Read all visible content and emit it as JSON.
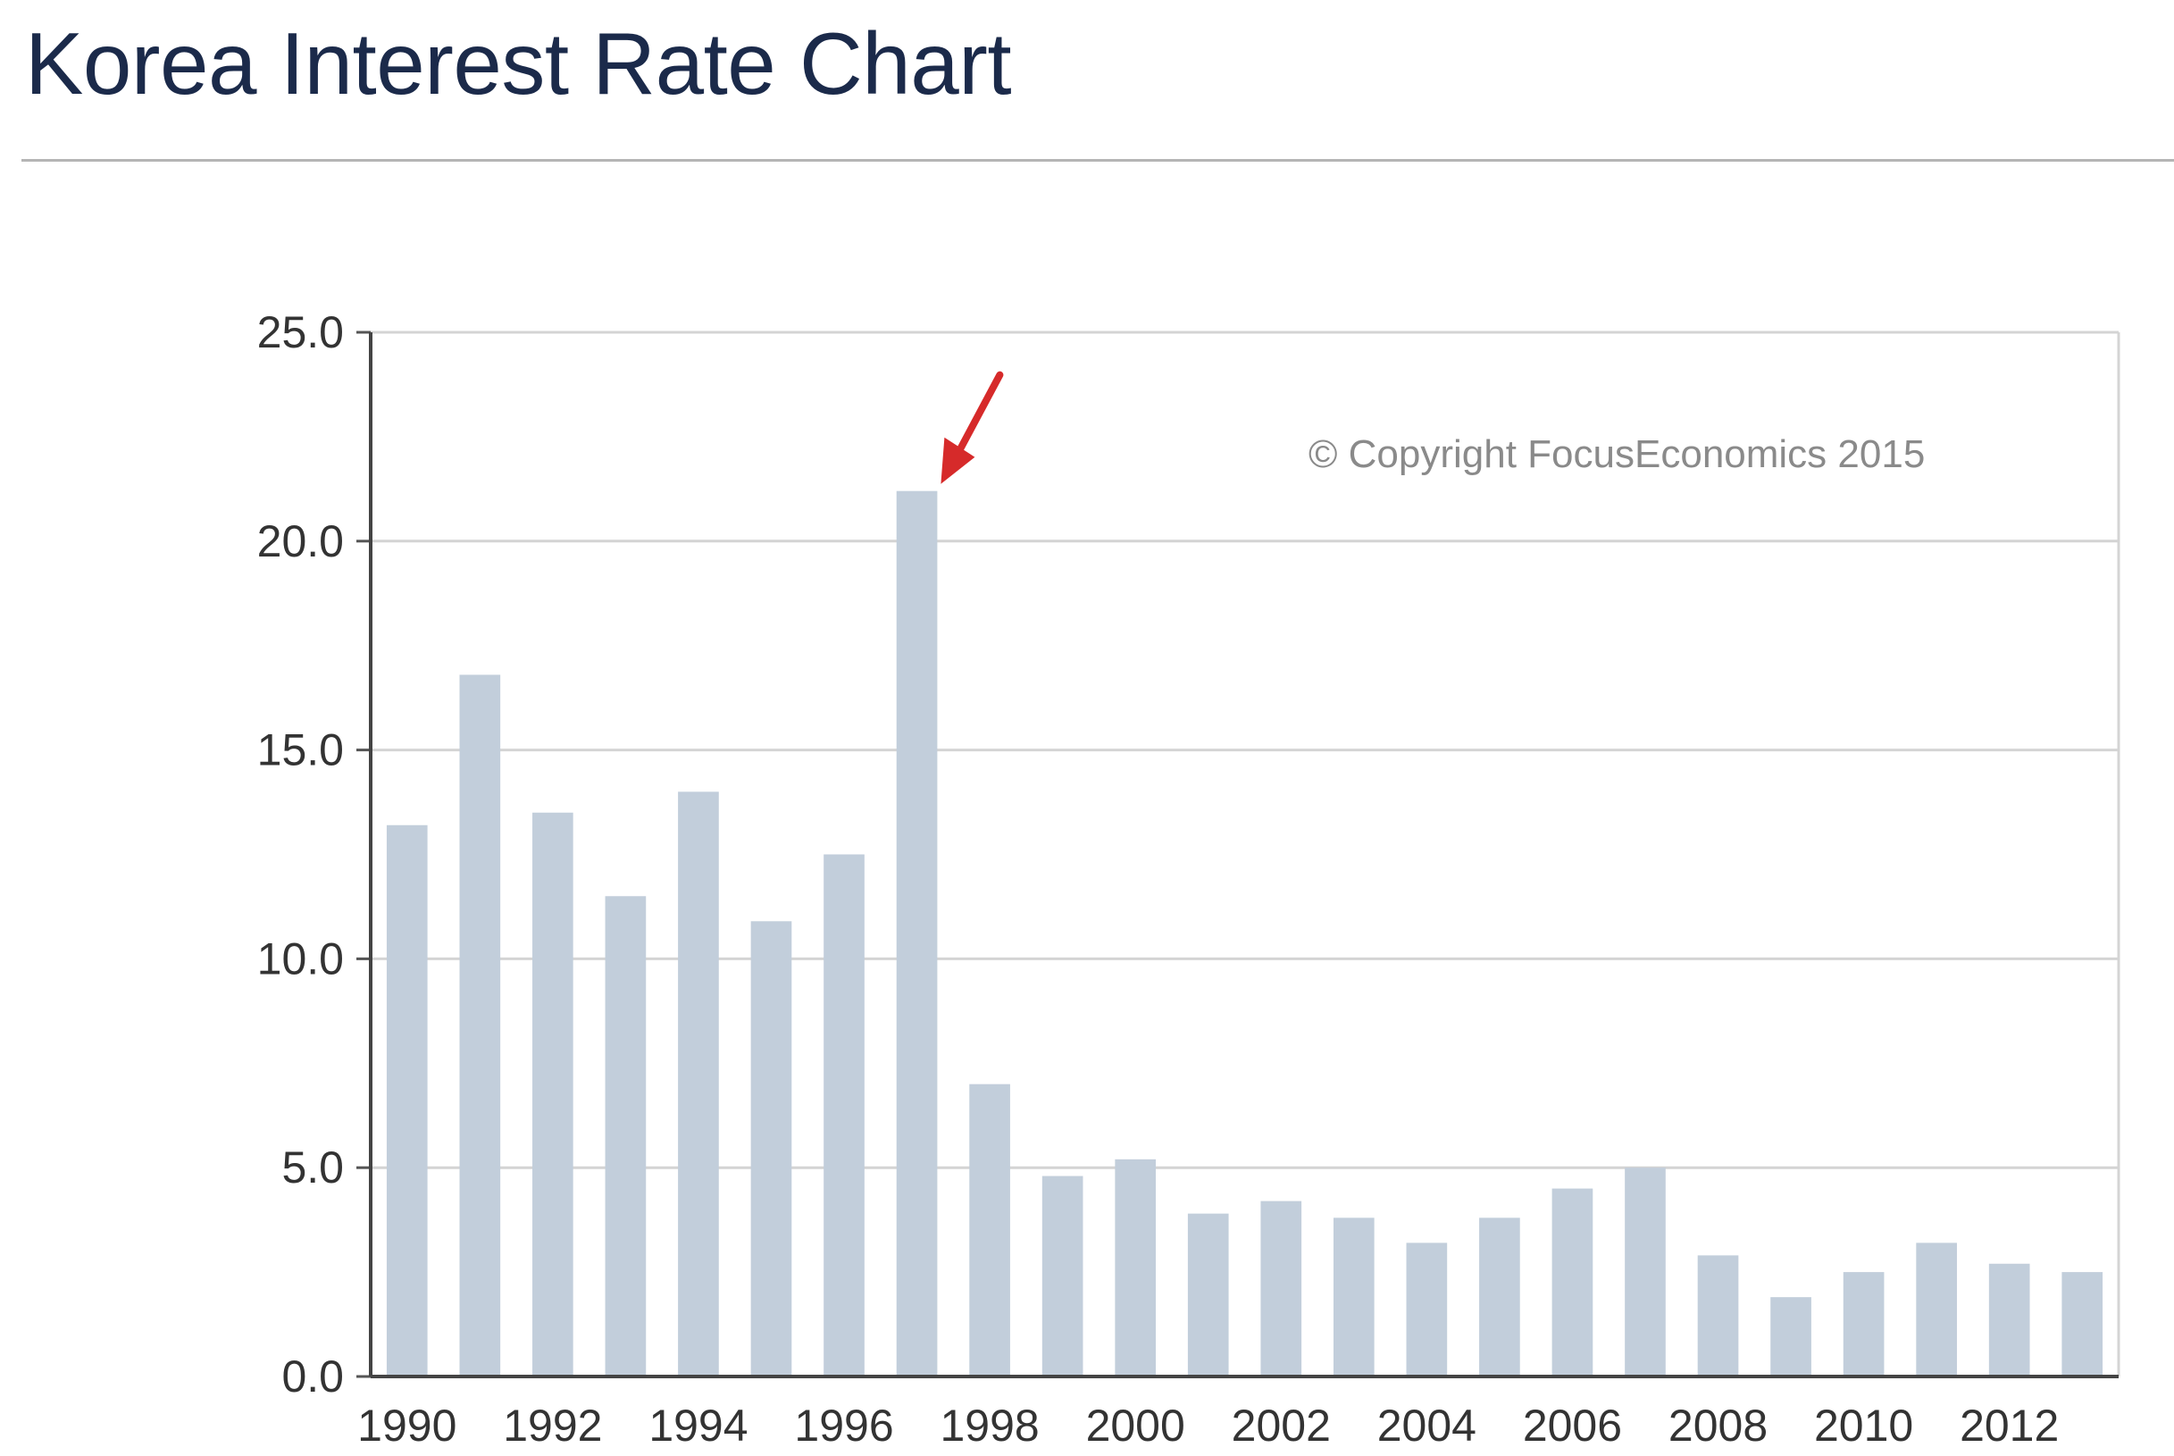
{
  "page": {
    "title": "Korea Interest Rate Chart"
  },
  "chart_data": {
    "type": "bar",
    "title": "Korea Interest Rate Chart",
    "xlabel": "",
    "ylabel": "",
    "ylim": [
      0,
      25
    ],
    "yticks": [
      "0.0",
      "5.0",
      "10.0",
      "15.0",
      "20.0",
      "25.0"
    ],
    "xtick_labels": [
      "1990",
      "1992",
      "1994",
      "1996",
      "1998",
      "2000",
      "2002",
      "2004",
      "2006",
      "2008",
      "2010",
      "2012"
    ],
    "categories": [
      "1990",
      "1991",
      "1992",
      "1993",
      "1994",
      "1995",
      "1996",
      "1997",
      "1998",
      "1999",
      "2000",
      "2001",
      "2002",
      "2003",
      "2004",
      "2005",
      "2006",
      "2007",
      "2008",
      "2009",
      "2010",
      "2011",
      "2012",
      "2013"
    ],
    "values": [
      13.2,
      16.8,
      13.5,
      11.5,
      14.0,
      10.9,
      12.5,
      21.2,
      7.0,
      4.8,
      5.2,
      3.9,
      4.2,
      3.8,
      3.2,
      3.8,
      4.5,
      5.0,
      2.9,
      1.9,
      2.5,
      3.2,
      2.7,
      2.5
    ],
    "grid": true,
    "bar_color": "#c2cedb",
    "highlight": {
      "category": "1997",
      "marker": "arrow",
      "color": "#d62a2a"
    },
    "annotation": "© Copyright FocusEconomics  2015"
  }
}
